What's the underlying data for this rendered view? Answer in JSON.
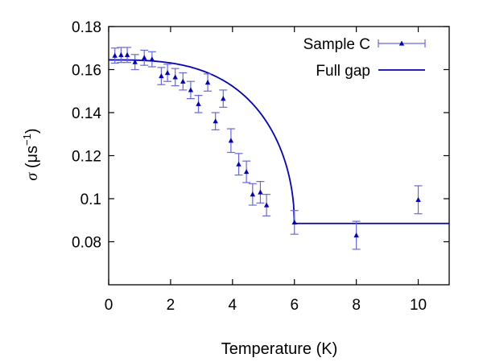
{
  "chart_data": {
    "type": "scatter",
    "xlabel": "Temperature (K)",
    "ylabel": {
      "symbol": "σ",
      "unit_open": " (μs",
      "exponent": "−1",
      "unit_close": ")"
    },
    "xlim": [
      0,
      11
    ],
    "ylim": [
      0.06,
      0.18
    ],
    "xticks": [
      0,
      2,
      4,
      6,
      8,
      10
    ],
    "yticks": [
      0.08,
      0.1,
      0.12,
      0.14,
      0.16,
      0.18
    ],
    "ytick_labels": [
      "0.08",
      "0.1",
      "0.12",
      "0.14",
      "0.16",
      "0.18"
    ],
    "grid": false,
    "legend_position": "top-right",
    "series": [
      {
        "name": "Sample C",
        "kind": "points-with-errorbars",
        "color": "#0000cc",
        "errorbar_color": "#6666ee",
        "points": [
          {
            "x": 0.2,
            "y": 0.1665,
            "err": 0.0035
          },
          {
            "x": 0.4,
            "y": 0.1668,
            "err": 0.0035
          },
          {
            "x": 0.6,
            "y": 0.1668,
            "err": 0.0035
          },
          {
            "x": 0.85,
            "y": 0.1635,
            "err": 0.0035
          },
          {
            "x": 1.15,
            "y": 0.1655,
            "err": 0.0035
          },
          {
            "x": 1.4,
            "y": 0.1648,
            "err": 0.0035
          },
          {
            "x": 1.7,
            "y": 0.157,
            "err": 0.004
          },
          {
            "x": 1.9,
            "y": 0.1585,
            "err": 0.004
          },
          {
            "x": 2.15,
            "y": 0.1565,
            "err": 0.004
          },
          {
            "x": 2.4,
            "y": 0.1545,
            "err": 0.004
          },
          {
            "x": 2.65,
            "y": 0.1505,
            "err": 0.004
          },
          {
            "x": 2.9,
            "y": 0.144,
            "err": 0.004
          },
          {
            "x": 3.2,
            "y": 0.154,
            "err": 0.004
          },
          {
            "x": 3.45,
            "y": 0.136,
            "err": 0.004
          },
          {
            "x": 3.7,
            "y": 0.1465,
            "err": 0.004
          },
          {
            "x": 3.95,
            "y": 0.127,
            "err": 0.0055
          },
          {
            "x": 4.2,
            "y": 0.116,
            "err": 0.005
          },
          {
            "x": 4.45,
            "y": 0.1125,
            "err": 0.005
          },
          {
            "x": 4.65,
            "y": 0.102,
            "err": 0.005
          },
          {
            "x": 4.9,
            "y": 0.103,
            "err": 0.005
          },
          {
            "x": 5.1,
            "y": 0.097,
            "err": 0.005
          },
          {
            "x": 6.0,
            "y": 0.089,
            "err": 0.0055
          },
          {
            "x": 8.0,
            "y": 0.083,
            "err": 0.0065
          },
          {
            "x": 10.0,
            "y": 0.0995,
            "err": 0.0065
          }
        ]
      },
      {
        "name": "Full gap",
        "kind": "line",
        "color": "#0000cc",
        "model": {
          "sigma0": 0.1645,
          "sigma_bg": 0.0885,
          "Tc": 6.0,
          "exponent": 3.0
        }
      }
    ]
  }
}
